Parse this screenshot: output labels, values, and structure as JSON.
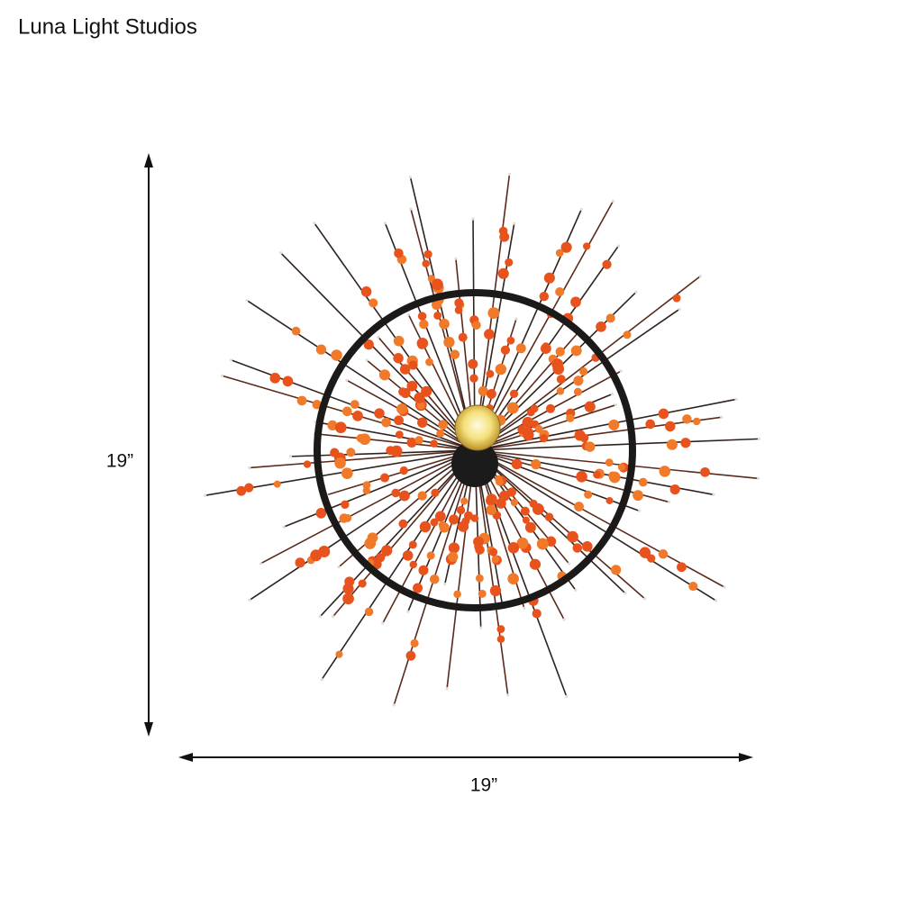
{
  "brand": "Luna Light Studios",
  "dimensions": {
    "height": "19”",
    "width": "19”"
  }
}
